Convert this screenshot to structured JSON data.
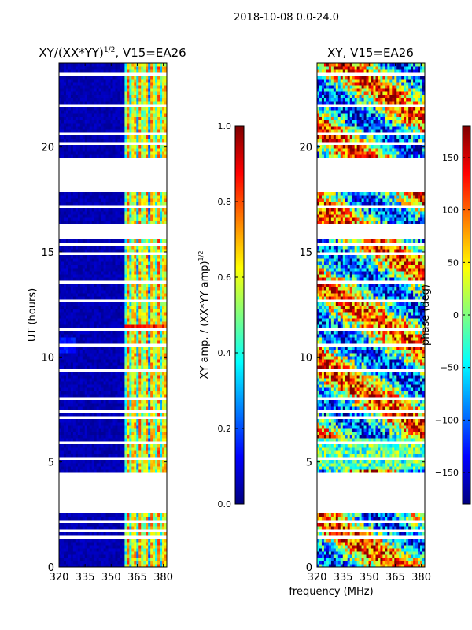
{
  "figure": {
    "suptitle": "2018-10-08 0.0-24.0",
    "shared_xlabel": "frequency (MHz)"
  },
  "colors": {
    "data_blue": "#00008f",
    "frame": "#000000"
  },
  "chart_data": [
    {
      "type": "heatmap",
      "title": "XY/(XX*YY)",
      "title_exponent": "1/2",
      "title_suffix": ", V15=EA26",
      "ylabel": "UT (hours)",
      "xlim": [
        320,
        382
      ],
      "ylim": [
        0,
        24
      ],
      "xticks": [
        "320",
        "335",
        "350",
        "365",
        "380"
      ],
      "xtick_values": [
        320,
        335,
        350,
        365,
        380
      ],
      "yticks": [
        "0",
        "5",
        "10",
        "15",
        "20"
      ],
      "ytick_values": [
        0,
        5,
        10,
        15,
        20
      ],
      "data_gaps_hours": [
        [
          2.6,
          4.5
        ],
        [
          15.5,
          15.3
        ],
        [
          17.8,
          19.5
        ]
      ],
      "colorbar": {
        "label": "XY amp. / (XX*YY amp)",
        "label_exponent": "1/2",
        "range": [
          0.0,
          1.0
        ],
        "ticks": [
          "0.0",
          "0.2",
          "0.4",
          "0.6",
          "0.8",
          "1.0"
        ],
        "tick_values": [
          0.0,
          0.2,
          0.4,
          0.6,
          0.8,
          1.0
        ]
      }
    },
    {
      "type": "heatmap",
      "title": "XY, V15=EA26",
      "xlim": [
        320,
        382
      ],
      "ylim": [
        0,
        24
      ],
      "xticks": [
        "320",
        "335",
        "350",
        "365",
        "380"
      ],
      "xtick_values": [
        320,
        335,
        350,
        365,
        380
      ],
      "yticks": [
        "0",
        "5",
        "10",
        "15",
        "20"
      ],
      "ytick_values": [
        0,
        5,
        10,
        15,
        20
      ],
      "colorbar": {
        "label": "phase (deg)",
        "range": [
          -180,
          180
        ],
        "ticks": [
          "−150",
          "−100",
          "−50",
          "0",
          "50",
          "100",
          "150"
        ],
        "tick_values": [
          -150,
          -100,
          -50,
          0,
          50,
          100,
          150
        ]
      }
    }
  ]
}
